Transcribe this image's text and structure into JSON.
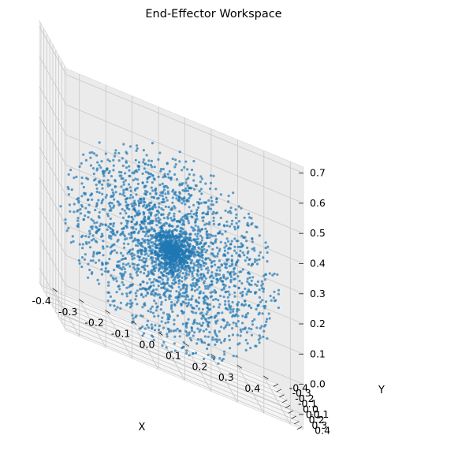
{
  "chart_data": {
    "type": "scatter",
    "title": "End-Effector Workspace",
    "xlabel": "X",
    "ylabel": "Y",
    "zlabel": "",
    "xlim": [
      -0.45,
      0.45
    ],
    "ylim": [
      -0.45,
      0.45
    ],
    "zlim": [
      -0.15,
      0.72
    ],
    "x_ticks": [
      "-0.4",
      "-0.3",
      "-0.2",
      "-0.1",
      "0.0",
      "0.1",
      "0.2",
      "0.3",
      "0.4"
    ],
    "y_ticks": [
      "-0.4",
      "-0.3",
      "-0.2",
      "-0.1",
      "0.0",
      "0.1",
      "0.2",
      "0.3",
      "0.4"
    ],
    "z_ticks": [
      "-0.1",
      "0.0",
      "0.1",
      "0.2",
      "0.3",
      "0.4",
      "0.5",
      "0.6",
      "0.7"
    ],
    "grid": true,
    "series": [
      {
        "color": "#1f77b4",
        "marker": "dot",
        "point_count": 3000,
        "center": [
          0.0,
          0.0,
          0.2
        ],
        "radius": 0.42
      }
    ]
  }
}
